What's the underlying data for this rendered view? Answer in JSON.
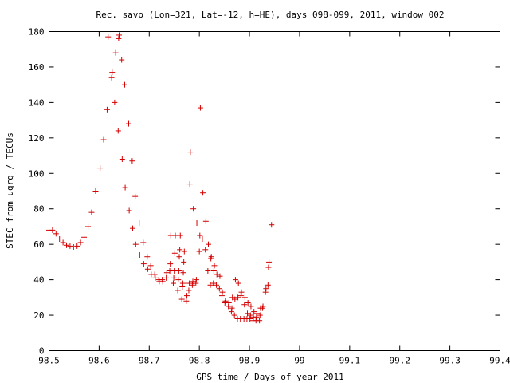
{
  "chart_data": {
    "type": "scatter",
    "title": "Rec. savo (Lon=321, Lat=-12, h=HE), days 098-099, 2011, window 002",
    "xlabel": "GPS time / Days of year 2011",
    "ylabel": "STEC from uqrg / TECUs",
    "xlim": [
      98.5,
      99.4
    ],
    "ylim": [
      0,
      180
    ],
    "xticks": [
      "98.5",
      "98.6",
      "98.7",
      "98.8",
      "98.9",
      "99",
      "99.1",
      "99.2",
      "99.3",
      "99.4"
    ],
    "yticks": [
      "0",
      "20",
      "40",
      "60",
      "80",
      "100",
      "120",
      "140",
      "160",
      "180"
    ],
    "grid": false,
    "legend": "none",
    "marker": "plus",
    "marker_color": "#d40000",
    "points": [
      [
        98.5,
        68
      ],
      [
        98.507,
        68
      ],
      [
        98.514,
        66
      ],
      [
        98.521,
        63
      ],
      [
        98.528,
        61
      ],
      [
        98.535,
        59.5
      ],
      [
        98.542,
        59
      ],
      [
        98.549,
        58.5
      ],
      [
        98.556,
        59
      ],
      [
        98.563,
        61
      ],
      [
        98.57,
        64
      ],
      [
        98.578,
        70
      ],
      [
        98.585,
        78
      ],
      [
        98.593,
        90
      ],
      [
        98.602,
        103
      ],
      [
        98.609,
        119
      ],
      [
        98.616,
        136
      ],
      [
        98.618,
        177
      ],
      [
        98.625,
        154
      ],
      [
        98.626,
        157
      ],
      [
        98.631,
        140
      ],
      [
        98.633,
        168
      ],
      [
        98.638,
        124
      ],
      [
        98.639,
        176
      ],
      [
        98.64,
        178
      ],
      [
        98.645,
        164
      ],
      [
        98.646,
        108
      ],
      [
        98.651,
        150
      ],
      [
        98.652,
        92
      ],
      [
        98.659,
        128
      ],
      [
        98.66,
        79
      ],
      [
        98.666,
        107
      ],
      [
        98.667,
        69
      ],
      [
        98.672,
        87
      ],
      [
        98.673,
        60
      ],
      [
        98.68,
        72
      ],
      [
        98.681,
        54
      ],
      [
        98.688,
        61
      ],
      [
        98.689,
        49
      ],
      [
        98.696,
        53
      ],
      [
        98.697,
        46
      ],
      [
        98.703,
        48
      ],
      [
        98.704,
        43
      ],
      [
        98.711,
        43
      ],
      [
        98.712,
        41
      ],
      [
        98.719,
        40
      ],
      [
        98.72,
        39
      ],
      [
        98.726,
        40
      ],
      [
        98.727,
        39
      ],
      [
        98.734,
        41
      ],
      [
        98.735,
        44
      ],
      [
        98.741,
        45
      ],
      [
        98.742,
        49
      ],
      [
        98.743,
        65
      ],
      [
        98.748,
        38
      ],
      [
        98.749,
        41
      ],
      [
        98.75,
        45
      ],
      [
        98.751,
        55
      ],
      [
        98.752,
        65
      ],
      [
        98.757,
        34
      ],
      [
        98.758,
        40
      ],
      [
        98.759,
        45
      ],
      [
        98.76,
        53
      ],
      [
        98.761,
        57
      ],
      [
        98.762,
        65
      ],
      [
        98.765,
        29
      ],
      [
        98.766,
        36
      ],
      [
        98.767,
        38
      ],
      [
        98.768,
        44
      ],
      [
        98.769,
        50
      ],
      [
        98.77,
        56
      ],
      [
        98.774,
        28
      ],
      [
        98.775,
        31
      ],
      [
        98.779,
        34
      ],
      [
        98.78,
        38
      ],
      [
        98.781,
        94
      ],
      [
        98.782,
        112
      ],
      [
        98.786,
        37
      ],
      [
        98.787,
        39
      ],
      [
        98.788,
        80
      ],
      [
        98.793,
        38
      ],
      [
        98.794,
        40
      ],
      [
        98.795,
        72
      ],
      [
        98.8,
        56
      ],
      [
        98.801,
        65
      ],
      [
        98.802,
        137
      ],
      [
        98.806,
        63
      ],
      [
        98.807,
        89
      ],
      [
        98.812,
        57
      ],
      [
        98.813,
        73
      ],
      [
        98.817,
        45
      ],
      [
        98.818,
        60
      ],
      [
        98.822,
        37
      ],
      [
        98.823,
        52
      ],
      [
        98.824,
        53
      ],
      [
        98.828,
        38
      ],
      [
        98.829,
        45
      ],
      [
        98.83,
        48
      ],
      [
        98.834,
        37
      ],
      [
        98.835,
        43
      ],
      [
        98.84,
        35
      ],
      [
        98.841,
        42
      ],
      [
        98.845,
        31
      ],
      [
        98.846,
        33
      ],
      [
        98.851,
        27
      ],
      [
        98.852,
        28
      ],
      [
        98.858,
        25
      ],
      [
        98.859,
        27
      ],
      [
        98.864,
        22
      ],
      [
        98.865,
        24
      ],
      [
        98.866,
        30
      ],
      [
        98.87,
        20
      ],
      [
        98.871,
        29
      ],
      [
        98.872,
        40
      ],
      [
        98.876,
        18
      ],
      [
        98.877,
        30
      ],
      [
        98.878,
        38
      ],
      [
        98.882,
        18
      ],
      [
        98.883,
        31
      ],
      [
        98.884,
        33
      ],
      [
        98.889,
        18
      ],
      [
        98.89,
        26
      ],
      [
        98.891,
        30
      ],
      [
        98.895,
        18
      ],
      [
        98.896,
        21
      ],
      [
        98.897,
        27
      ],
      [
        98.901,
        18
      ],
      [
        98.902,
        20
      ],
      [
        98.903,
        25
      ],
      [
        98.907,
        17
      ],
      [
        98.908,
        19
      ],
      [
        98.909,
        22
      ],
      [
        98.913,
        17
      ],
      [
        98.914,
        19
      ],
      [
        98.915,
        21
      ],
      [
        98.92,
        17
      ],
      [
        98.921,
        20
      ],
      [
        98.922,
        24
      ],
      [
        98.926,
        24
      ],
      [
        98.927,
        25
      ],
      [
        98.932,
        33
      ],
      [
        98.933,
        35
      ],
      [
        98.937,
        37
      ],
      [
        98.938,
        47
      ],
      [
        98.939,
        50
      ],
      [
        98.944,
        71
      ]
    ]
  }
}
